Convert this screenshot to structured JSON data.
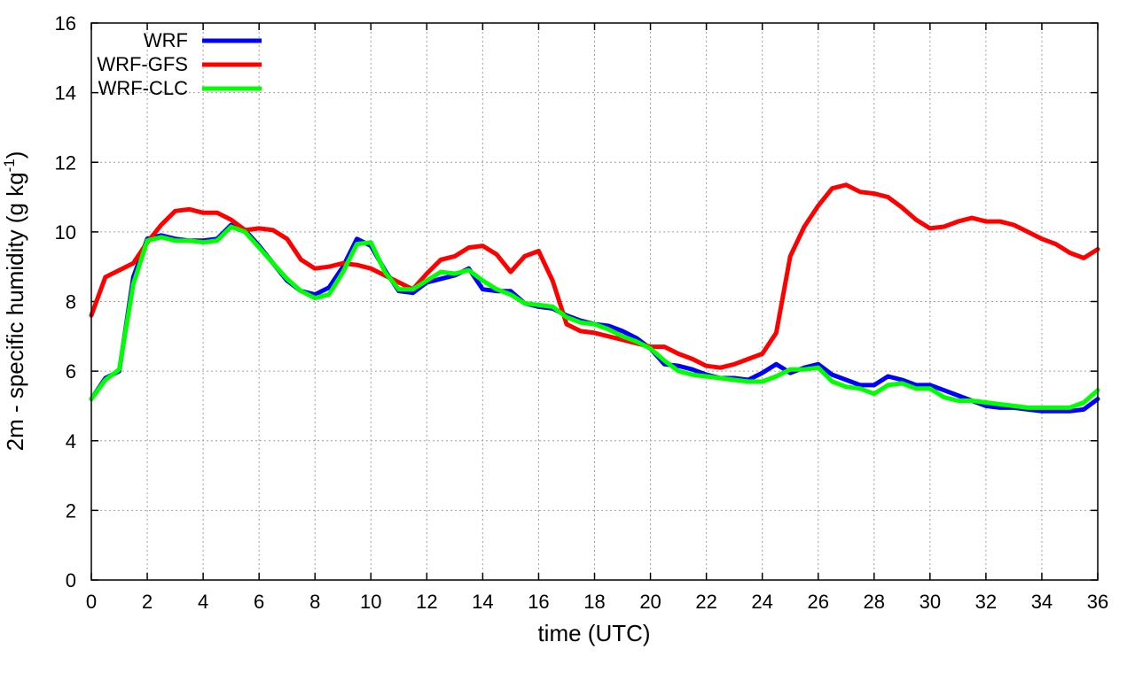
{
  "chart_data": {
    "type": "line",
    "xlabel": "time (UTC)",
    "ylabel": "2m - specific humidity (g kg",
    "ylabel_sup": "-1",
    "ylabel_end": ")",
    "xlim": [
      0,
      36
    ],
    "ylim": [
      0,
      16
    ],
    "xticks": [
      0,
      2,
      4,
      6,
      8,
      10,
      12,
      14,
      16,
      18,
      20,
      22,
      24,
      26,
      28,
      30,
      32,
      34,
      36
    ],
    "yticks": [
      0,
      2,
      4,
      6,
      8,
      10,
      12,
      14,
      16
    ],
    "grid": true,
    "legend_position": "top-left",
    "x": [
      0,
      0.5,
      1,
      1.5,
      2,
      2.5,
      3,
      3.5,
      4,
      4.5,
      5,
      5.5,
      6,
      6.5,
      7,
      7.5,
      8,
      8.5,
      9,
      9.5,
      10,
      10.5,
      11,
      11.5,
      12,
      12.5,
      13,
      13.5,
      14,
      14.5,
      15,
      15.5,
      16,
      16.5,
      17,
      17.5,
      18,
      18.5,
      19,
      19.5,
      20,
      20.5,
      21,
      21.5,
      22,
      22.5,
      23,
      23.5,
      24,
      24.5,
      25,
      25.5,
      26,
      26.5,
      27,
      27.5,
      28,
      28.5,
      29,
      29.5,
      30,
      30.5,
      31,
      31.5,
      32,
      32.5,
      33,
      33.5,
      34,
      34.5,
      35,
      35.5,
      36
    ],
    "series": [
      {
        "name": "WRF",
        "color": "#0000ff",
        "values": [
          5.2,
          5.8,
          6.0,
          8.7,
          9.8,
          9.9,
          9.8,
          9.75,
          9.75,
          9.8,
          10.2,
          10.05,
          9.6,
          9.1,
          8.6,
          8.3,
          8.2,
          8.4,
          9.0,
          9.8,
          9.6,
          8.9,
          8.3,
          8.25,
          8.55,
          8.65,
          8.75,
          8.95,
          8.35,
          8.3,
          8.3,
          7.95,
          7.85,
          7.8,
          7.6,
          7.45,
          7.35,
          7.3,
          7.15,
          6.95,
          6.65,
          6.2,
          6.15,
          6.05,
          5.9,
          5.8,
          5.8,
          5.75,
          5.95,
          6.2,
          5.95,
          6.1,
          6.2,
          5.9,
          5.75,
          5.6,
          5.6,
          5.85,
          5.75,
          5.6,
          5.6,
          5.45,
          5.3,
          5.15,
          5.0,
          4.95,
          4.95,
          4.9,
          4.85,
          4.85,
          4.85,
          4.9,
          5.2
        ]
      },
      {
        "name": "WRF-GFS",
        "color": "#ff0000",
        "values": [
          7.6,
          8.7,
          8.9,
          9.1,
          9.7,
          10.2,
          10.6,
          10.65,
          10.55,
          10.55,
          10.35,
          10.05,
          10.1,
          10.05,
          9.8,
          9.2,
          8.95,
          9.0,
          9.1,
          9.05,
          8.95,
          8.75,
          8.55,
          8.35,
          8.8,
          9.2,
          9.3,
          9.55,
          9.6,
          9.35,
          8.85,
          9.3,
          9.45,
          8.6,
          7.35,
          7.15,
          7.1,
          7.0,
          6.9,
          6.8,
          6.7,
          6.7,
          6.5,
          6.35,
          6.15,
          6.1,
          6.2,
          6.35,
          6.5,
          7.1,
          9.3,
          10.15,
          10.75,
          11.25,
          11.35,
          11.15,
          11.1,
          11.0,
          10.7,
          10.35,
          10.1,
          10.15,
          10.3,
          10.4,
          10.3,
          10.3,
          10.2,
          10.0,
          9.8,
          9.65,
          9.4,
          9.25,
          9.5
        ]
      },
      {
        "name": "WRF-CLC",
        "color": "#00ff00",
        "values": [
          5.2,
          5.75,
          6.05,
          8.5,
          9.75,
          9.85,
          9.75,
          9.75,
          9.7,
          9.75,
          10.15,
          10.0,
          9.55,
          9.1,
          8.65,
          8.3,
          8.1,
          8.2,
          8.85,
          9.65,
          9.7,
          8.85,
          8.35,
          8.35,
          8.6,
          8.85,
          8.8,
          8.9,
          8.6,
          8.35,
          8.2,
          7.95,
          7.9,
          7.85,
          7.55,
          7.4,
          7.35,
          7.2,
          7.0,
          6.85,
          6.65,
          6.3,
          6.0,
          5.9,
          5.85,
          5.8,
          5.75,
          5.7,
          5.7,
          5.85,
          6.05,
          6.05,
          6.1,
          5.7,
          5.55,
          5.5,
          5.35,
          5.6,
          5.65,
          5.5,
          5.5,
          5.25,
          5.15,
          5.15,
          5.1,
          5.05,
          5.0,
          4.95,
          4.95,
          4.95,
          4.95,
          5.1,
          5.45
        ]
      }
    ]
  }
}
